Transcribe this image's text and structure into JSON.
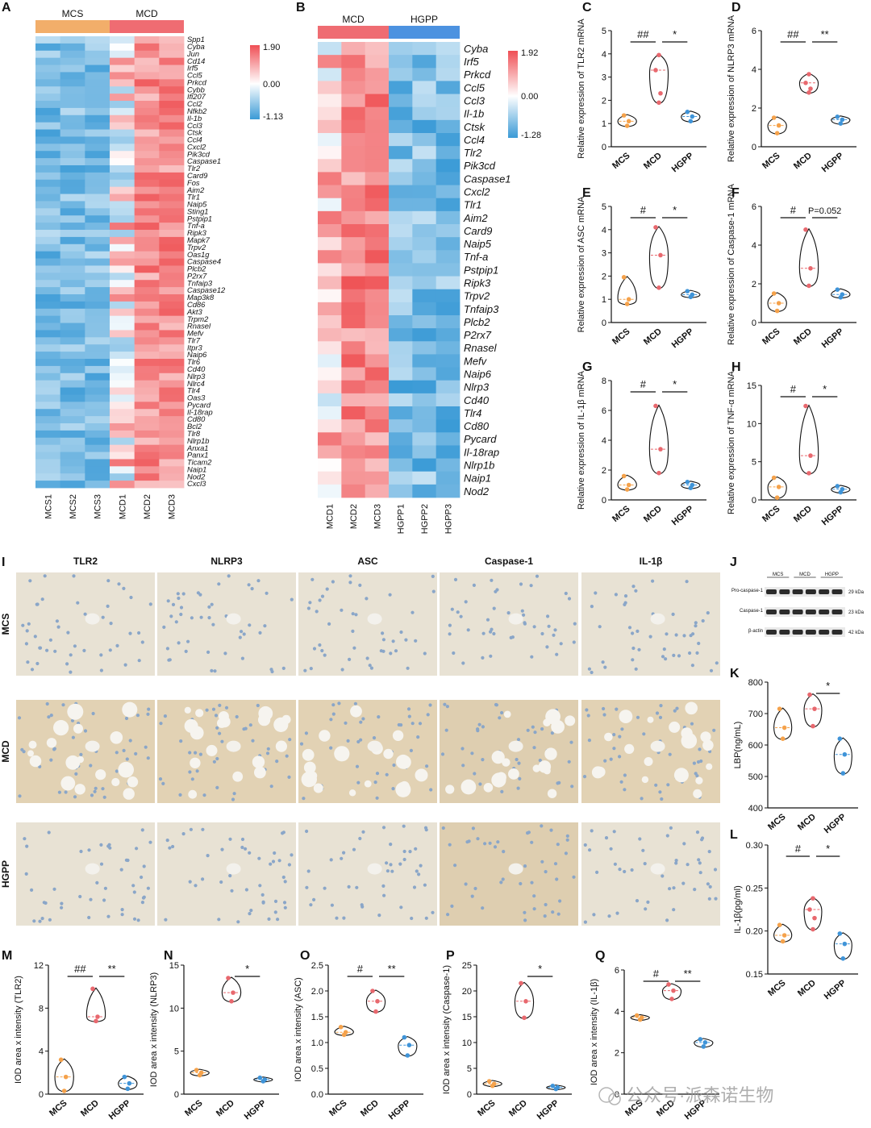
{
  "panel_letters": {
    "A": "A",
    "B": "B",
    "C": "C",
    "D": "D",
    "E": "E",
    "F": "F",
    "G": "G",
    "H": "H",
    "I": "I",
    "J": "J",
    "K": "K",
    "L": "L",
    "M": "M",
    "N": "N",
    "O": "O",
    "P": "P",
    "Q": "Q"
  },
  "heatmap_a": {
    "groups": [
      "MCS",
      "MCD"
    ],
    "columns": [
      "MCS1",
      "MCS2",
      "MCS3",
      "MCD1",
      "MCD2",
      "MCD3"
    ],
    "genes": [
      "Spp1",
      "Cyba",
      "Jun",
      "Cd14",
      "Irf5",
      "Ccl5",
      "Prkcd",
      "Cybb",
      "Ifi207",
      "Ccl2",
      "Nfkb2",
      "Il-1b",
      "Ccl3",
      "Ctsk",
      "Ccl4",
      "Cxcl2",
      "Pik3cd",
      "Caspase1",
      "Tlr2",
      "Card9",
      "Fos",
      "Aim2",
      "Tlr1",
      "Naip5",
      "Sting1",
      "Pstpip1",
      "Tnf-a",
      "Ripk3",
      "Mapk7",
      "Trpv2",
      "Oas1g",
      "Caspase4",
      "Plcb2",
      "P2rx7",
      "Tnfaip3",
      "Caspase12",
      "Map3k8",
      "Cd86",
      "Akt3",
      "Trpm2",
      "Rnasel",
      "Mefv",
      "Tlr7",
      "Itpr3",
      "Naip6",
      "Tlr6",
      "Cd40",
      "Nlrp3",
      "Nlrc4",
      "Tlr4",
      "Oas3",
      "Pycard",
      "Il-18rap",
      "Cd80",
      "Bcl2",
      "Tlr8",
      "Nlrp1b",
      "Anxa1",
      "Panx1",
      "Ticam2",
      "Naip1",
      "Nod2",
      "Cxcl3"
    ],
    "scale": [
      "1.90",
      "0.00",
      "-1.13"
    ]
  },
  "heatmap_b": {
    "groups": [
      "MCD",
      "HGPP"
    ],
    "columns": [
      "MCD1",
      "MCD2",
      "MCD3",
      "HGPP1",
      "HGPP2",
      "HGPP3"
    ],
    "genes": [
      "Cyba",
      "Irf5",
      "Prkcd",
      "Ccl5",
      "Ccl3",
      "Il-1b",
      "Ctsk",
      "Ccl4",
      "Tlr2",
      "Pik3cd",
      "Caspase1",
      "Cxcl2",
      "Tlr1",
      "Aim2",
      "Card9",
      "Naip5",
      "Tnf-a",
      "Pstpip1",
      "Ripk3",
      "Trpv2",
      "Tnfaip3",
      "Plcb2",
      "P2rx7",
      "Rnasel",
      "Mefv",
      "Naip6",
      "Nlrp3",
      "Cd40",
      "Tlr4",
      "Cd80",
      "Pycard",
      "Il-18rap",
      "Nlrp1b",
      "Naip1",
      "Nod2"
    ],
    "scale": [
      "1.92",
      "0.00",
      "-1.28"
    ]
  },
  "ihc": {
    "stains": [
      "TLR2",
      "NLRP3",
      "ASC",
      "Caspase-1",
      "IL-1β"
    ],
    "groups": [
      "MCS",
      "MCD",
      "HGPP"
    ]
  },
  "western": {
    "groups": [
      "MCS",
      "MCD",
      "HGPP"
    ],
    "bands": [
      {
        "label": "Pro-caspase-1",
        "size": "29 kDa"
      },
      {
        "label": "Caspase-1",
        "size": "23 kDa"
      },
      {
        "label": "β-actin",
        "size": "42 kDa"
      }
    ]
  },
  "chart_data": [
    {
      "id": "C",
      "type": "violin",
      "ylabel": "Relative expression of TLR2 mRNA",
      "categories": [
        "MCS",
        "MCD",
        "HGPP"
      ],
      "yticks": [
        0,
        1,
        2,
        3,
        4,
        5
      ],
      "ylim": [
        0,
        5
      ],
      "series": [
        {
          "name": "MCS",
          "values": [
            0.9,
            1.1,
            1.35
          ]
        },
        {
          "name": "MCD",
          "values": [
            1.9,
            2.3,
            3.3,
            3.95
          ]
        },
        {
          "name": "HGPP",
          "values": [
            1.1,
            1.3,
            1.5
          ]
        }
      ],
      "annotations": [
        {
          "text": "##",
          "between": [
            "MCS",
            "MCD"
          ]
        },
        {
          "text": "*",
          "between": [
            "MCD",
            "HGPP"
          ]
        }
      ]
    },
    {
      "id": "D",
      "type": "violin",
      "ylabel": "Relative expression of NLRP3 mRNA",
      "categories": [
        "MCS",
        "MCD",
        "HGPP"
      ],
      "yticks": [
        0,
        2,
        4,
        6
      ],
      "ylim": [
        0,
        6
      ],
      "series": [
        {
          "name": "MCS",
          "values": [
            0.7,
            1.1,
            1.5
          ]
        },
        {
          "name": "MCD",
          "values": [
            2.8,
            3.0,
            3.3,
            3.75
          ]
        },
        {
          "name": "HGPP",
          "values": [
            1.2,
            1.4,
            1.55
          ]
        }
      ],
      "annotations": [
        {
          "text": "##",
          "between": [
            "MCS",
            "MCD"
          ]
        },
        {
          "text": "**",
          "between": [
            "MCD",
            "HGPP"
          ]
        }
      ]
    },
    {
      "id": "E",
      "type": "violin",
      "ylabel": "Relative expression of ASC mRNA",
      "categories": [
        "MCS",
        "MCD",
        "HGPP"
      ],
      "yticks": [
        0,
        1,
        2,
        3,
        4,
        5
      ],
      "ylim": [
        0,
        5
      ],
      "series": [
        {
          "name": "MCS",
          "values": [
            0.8,
            1.0,
            1.95
          ]
        },
        {
          "name": "MCD",
          "values": [
            1.5,
            2.9,
            4.1
          ]
        },
        {
          "name": "HGPP",
          "values": [
            1.1,
            1.2,
            1.35
          ]
        }
      ],
      "annotations": [
        {
          "text": "#",
          "between": [
            "MCS",
            "MCD"
          ]
        },
        {
          "text": "*",
          "between": [
            "MCD",
            "HGPP"
          ]
        }
      ]
    },
    {
      "id": "F",
      "type": "violin",
      "ylabel": "Relative expression of Caspase-1 mRNA",
      "categories": [
        "MCS",
        "MCD",
        "HGPP"
      ],
      "yticks": [
        0,
        2,
        4,
        6
      ],
      "ylim": [
        0,
        6
      ],
      "series": [
        {
          "name": "MCS",
          "values": [
            0.6,
            1.0,
            1.5
          ]
        },
        {
          "name": "MCD",
          "values": [
            1.9,
            2.8,
            4.8
          ]
        },
        {
          "name": "HGPP",
          "values": [
            1.3,
            1.45,
            1.7
          ]
        }
      ],
      "annotations": [
        {
          "text": "#",
          "between": [
            "MCS",
            "MCD"
          ]
        },
        {
          "text": "P=0.052",
          "between": [
            "MCD",
            "HGPP"
          ]
        }
      ]
    },
    {
      "id": "G",
      "type": "violin",
      "ylabel": "Relative expression of IL-1β mRNA",
      "categories": [
        "MCS",
        "MCD",
        "HGPP"
      ],
      "yticks": [
        0,
        2,
        4,
        6,
        8
      ],
      "ylim": [
        0,
        8
      ],
      "series": [
        {
          "name": "MCS",
          "values": [
            0.7,
            1.0,
            1.6
          ]
        },
        {
          "name": "MCD",
          "values": [
            1.8,
            3.4,
            6.3
          ]
        },
        {
          "name": "HGPP",
          "values": [
            0.8,
            1.0,
            1.2
          ]
        }
      ],
      "annotations": [
        {
          "text": "#",
          "between": [
            "MCS",
            "MCD"
          ]
        },
        {
          "text": "*",
          "between": [
            "MCD",
            "HGPP"
          ]
        }
      ]
    },
    {
      "id": "H",
      "type": "violin",
      "ylabel": "Relative expression of TNF-α mRNA",
      "categories": [
        "MCS",
        "MCD",
        "HGPP"
      ],
      "yticks": [
        0,
        5,
        10,
        15
      ],
      "ylim": [
        0,
        15
      ],
      "series": [
        {
          "name": "MCS",
          "values": [
            0.3,
            1.7,
            2.9
          ]
        },
        {
          "name": "MCD",
          "values": [
            3.5,
            5.8,
            12.3
          ]
        },
        {
          "name": "HGPP",
          "values": [
            1.0,
            1.4,
            1.8
          ]
        }
      ],
      "annotations": [
        {
          "text": "#",
          "between": [
            "MCS",
            "MCD"
          ]
        },
        {
          "text": "*",
          "between": [
            "MCD",
            "HGPP"
          ]
        }
      ]
    },
    {
      "id": "K",
      "type": "violin",
      "ylabel": "LBP(ng/mL)",
      "categories": [
        "MCS",
        "MCD",
        "HGPP"
      ],
      "yticks": [
        400,
        500,
        600,
        700,
        800
      ],
      "ylim": [
        400,
        800
      ],
      "series": [
        {
          "name": "MCS",
          "values": [
            620,
            655,
            715
          ]
        },
        {
          "name": "MCD",
          "values": [
            660,
            715,
            760
          ]
        },
        {
          "name": "HGPP",
          "values": [
            510,
            570,
            620
          ]
        }
      ],
      "annotations": [
        {
          "text": "*",
          "between": [
            "MCD",
            "HGPP"
          ]
        }
      ]
    },
    {
      "id": "L",
      "type": "violin",
      "ylabel": "IL-1β(pg/ml)",
      "categories": [
        "MCS",
        "MCD",
        "HGPP"
      ],
      "yticks": [
        "0.15",
        "0.20",
        "0.25",
        "0.30"
      ],
      "ylim": [
        0.15,
        0.3
      ],
      "series": [
        {
          "name": "MCS",
          "values": [
            0.188,
            0.195,
            0.207
          ]
        },
        {
          "name": "MCD",
          "values": [
            0.202,
            0.215,
            0.225,
            0.238
          ]
        },
        {
          "name": "HGPP",
          "values": [
            0.168,
            0.185,
            0.197
          ]
        }
      ],
      "annotations": [
        {
          "text": "#",
          "between": [
            "MCS",
            "MCD"
          ]
        },
        {
          "text": "*",
          "between": [
            "MCD",
            "HGPP"
          ]
        }
      ]
    },
    {
      "id": "M",
      "type": "violin",
      "ylabel": "IOD area x intensity (TLR2)",
      "categories": [
        "MCS",
        "MCD",
        "HGPP"
      ],
      "yticks": [
        0,
        4,
        8,
        12
      ],
      "ylim": [
        0,
        12
      ],
      "series": [
        {
          "name": "MCS",
          "values": [
            0.3,
            1.6,
            3.2
          ]
        },
        {
          "name": "MCD",
          "values": [
            6.8,
            7.2,
            9.8
          ]
        },
        {
          "name": "HGPP",
          "values": [
            0.5,
            1.0,
            1.6
          ]
        }
      ],
      "annotations": [
        {
          "text": "##",
          "between": [
            "MCS",
            "MCD"
          ]
        },
        {
          "text": "**",
          "between": [
            "MCD",
            "HGPP"
          ]
        }
      ]
    },
    {
      "id": "N",
      "type": "violin",
      "ylabel": "IOD area x intensity (NLRP3)",
      "categories": [
        "MCS",
        "MCD",
        "HGPP"
      ],
      "yticks": [
        0,
        5,
        10,
        15
      ],
      "ylim": [
        0,
        15
      ],
      "series": [
        {
          "name": "MCS",
          "values": [
            2.2,
            2.5,
            2.8
          ]
        },
        {
          "name": "MCD",
          "values": [
            10.8,
            11.8,
            13.5
          ]
        },
        {
          "name": "HGPP",
          "values": [
            1.5,
            1.7,
            1.9
          ]
        }
      ],
      "annotations": [
        {
          "text": "*",
          "between": [
            "MCD",
            "HGPP"
          ]
        }
      ]
    },
    {
      "id": "O",
      "type": "violin",
      "ylabel": "IOD area x intensity (ASC)",
      "categories": [
        "MCS",
        "MCD",
        "HGPP"
      ],
      "yticks": [
        "0.0",
        "0.5",
        "1.0",
        "1.5",
        "2.0",
        "2.5"
      ],
      "ylim": [
        0,
        2.5
      ],
      "series": [
        {
          "name": "MCS",
          "values": [
            1.15,
            1.2,
            1.3
          ]
        },
        {
          "name": "MCD",
          "values": [
            1.6,
            1.8,
            2.0
          ]
        },
        {
          "name": "HGPP",
          "values": [
            0.75,
            0.95,
            1.1
          ]
        }
      ],
      "annotations": [
        {
          "text": "#",
          "between": [
            "MCS",
            "MCD"
          ]
        },
        {
          "text": "**",
          "between": [
            "MCD",
            "HGPP"
          ]
        }
      ]
    },
    {
      "id": "P",
      "type": "violin",
      "ylabel": "IOD area x intensity (Caspase-1)",
      "categories": [
        "MCS",
        "MCD",
        "HGPP"
      ],
      "yticks": [
        0,
        5,
        10,
        15,
        20,
        25
      ],
      "ylim": [
        0,
        25
      ],
      "series": [
        {
          "name": "MCS",
          "values": [
            1.6,
            2.0,
            2.5
          ]
        },
        {
          "name": "MCD",
          "values": [
            14.8,
            18.0,
            21.5
          ]
        },
        {
          "name": "HGPP",
          "values": [
            1.0,
            1.3,
            1.6
          ]
        }
      ],
      "annotations": [
        {
          "text": "*",
          "between": [
            "MCD",
            "HGPP"
          ]
        }
      ]
    },
    {
      "id": "Q",
      "type": "violin",
      "ylabel": "IOD area x intensity (IL-1β)",
      "categories": [
        "MCS",
        "MCD",
        "HGPP"
      ],
      "yticks": [
        0,
        2,
        4,
        6
      ],
      "ylim": [
        0,
        6
      ],
      "series": [
        {
          "name": "MCS",
          "values": [
            3.6,
            3.7,
            3.8
          ]
        },
        {
          "name": "MCD",
          "values": [
            4.6,
            5.0,
            5.3
          ]
        },
        {
          "name": "HGPP",
          "values": [
            2.3,
            2.5,
            2.65
          ]
        }
      ],
      "annotations": [
        {
          "text": "#",
          "between": [
            "MCS",
            "MCD"
          ]
        },
        {
          "text": "**",
          "between": [
            "MCD",
            "HGPP"
          ]
        }
      ]
    }
  ],
  "colors": {
    "MCS": "#f5a24b",
    "MCD": "#e8686e",
    "HGPP": "#3f94d8",
    "heat_high": "#ef5356",
    "heat_mid": "#ffffff",
    "heat_low": "#3a9ad6"
  },
  "watermark": "公众号·派森诺生物"
}
